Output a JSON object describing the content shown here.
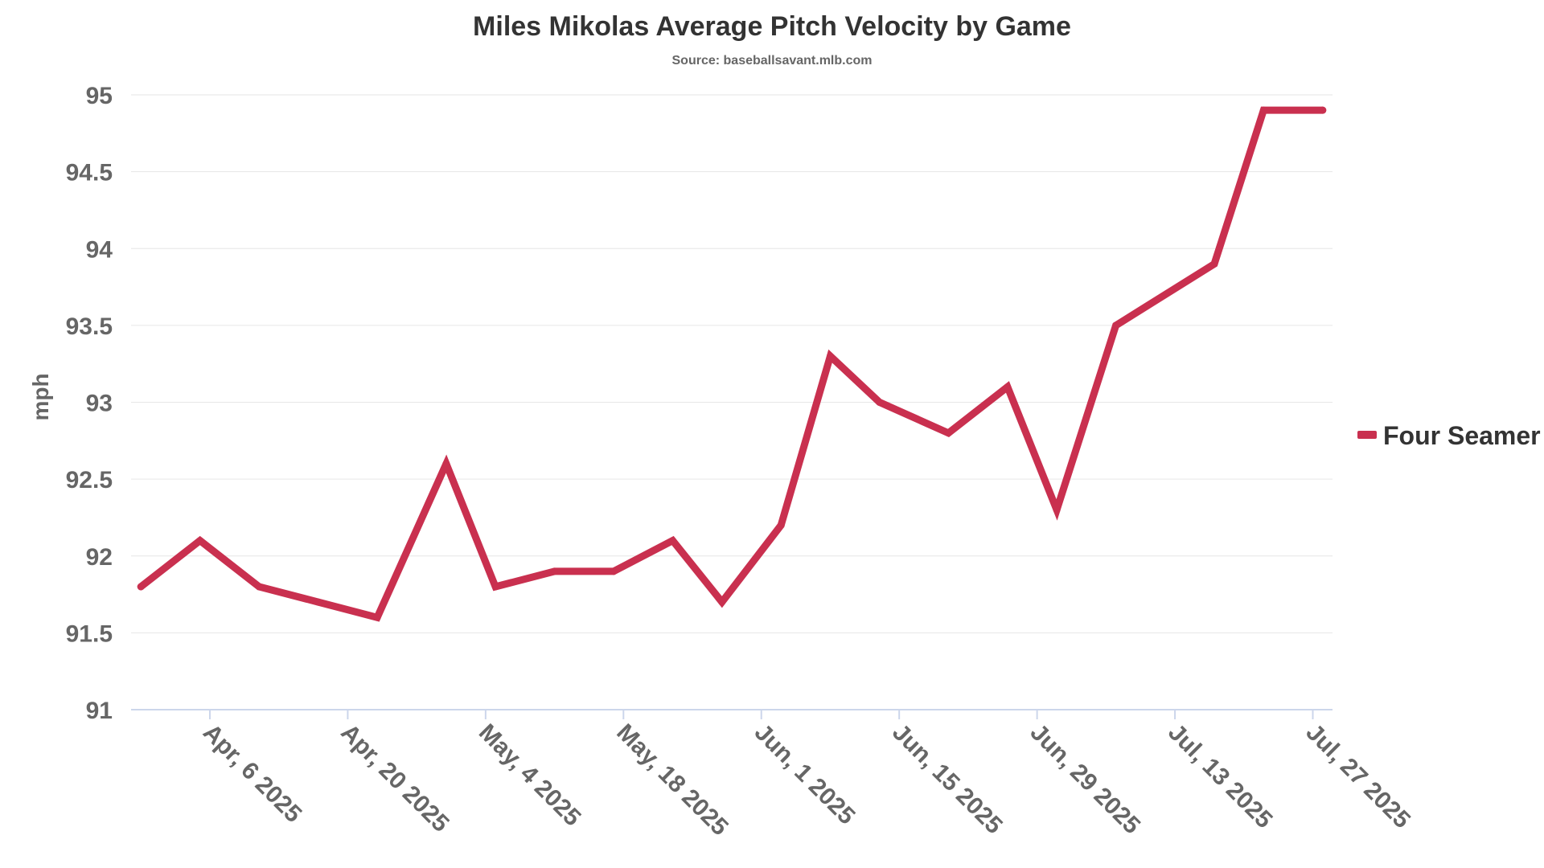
{
  "chart_data": {
    "type": "line",
    "title": "Miles Mikolas Average Pitch Velocity by Game",
    "subtitle": "Source: baseballsavant.mlb.com",
    "xlabel": "",
    "ylabel": "mph",
    "ylim": [
      91,
      95
    ],
    "yticks": [
      91,
      91.5,
      92,
      92.5,
      93,
      93.5,
      94,
      94.5,
      95
    ],
    "xlim": [
      "2025-03-29",
      "2025-07-29"
    ],
    "xticks": [
      {
        "date": "2025-04-06",
        "label": "Apr, 6 2025"
      },
      {
        "date": "2025-04-20",
        "label": "Apr, 20 2025"
      },
      {
        "date": "2025-05-04",
        "label": "May, 4 2025"
      },
      {
        "date": "2025-05-18",
        "label": "May, 18 2025"
      },
      {
        "date": "2025-06-01",
        "label": "Jun, 1 2025"
      },
      {
        "date": "2025-06-15",
        "label": "Jun, 15 2025"
      },
      {
        "date": "2025-06-29",
        "label": "Jun, 29 2025"
      },
      {
        "date": "2025-07-13",
        "label": "Jul, 13 2025"
      },
      {
        "date": "2025-07-27",
        "label": "Jul, 27 2025"
      }
    ],
    "grid": true,
    "legend": "right",
    "series": [
      {
        "name": "Four Seamer",
        "color": "#c9304f",
        "points": [
          {
            "x": "2025-03-30",
            "y": 91.8
          },
          {
            "x": "2025-04-05",
            "y": 92.1
          },
          {
            "x": "2025-04-11",
            "y": 91.8
          },
          {
            "x": "2025-04-17",
            "y": 91.7
          },
          {
            "x": "2025-04-23",
            "y": 91.6
          },
          {
            "x": "2025-04-30",
            "y": 92.6
          },
          {
            "x": "2025-05-05",
            "y": 91.8
          },
          {
            "x": "2025-05-11",
            "y": 91.9
          },
          {
            "x": "2025-05-17",
            "y": 91.9
          },
          {
            "x": "2025-05-23",
            "y": 92.1
          },
          {
            "x": "2025-05-28",
            "y": 91.7
          },
          {
            "x": "2025-06-03",
            "y": 92.2
          },
          {
            "x": "2025-06-08",
            "y": 93.3
          },
          {
            "x": "2025-06-13",
            "y": 93.0
          },
          {
            "x": "2025-06-20",
            "y": 92.8
          },
          {
            "x": "2025-06-26",
            "y": 93.1
          },
          {
            "x": "2025-07-01",
            "y": 92.3
          },
          {
            "x": "2025-07-07",
            "y": 93.5
          },
          {
            "x": "2025-07-17",
            "y": 93.9
          },
          {
            "x": "2025-07-22",
            "y": 94.9
          },
          {
            "x": "2025-07-28",
            "y": 94.9
          }
        ]
      }
    ]
  }
}
